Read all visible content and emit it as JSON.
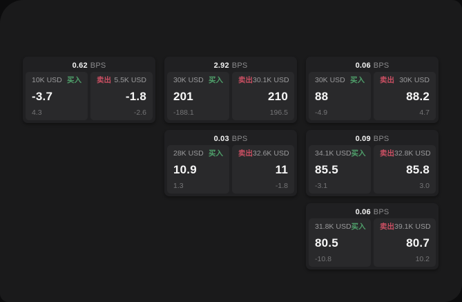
{
  "labels": {
    "bps_unit": "BPS",
    "buy": "买入",
    "sell": "卖出"
  },
  "colors": {
    "buy": "#4f9f6a",
    "sell": "#c94f62",
    "surface": "#1a1a1b",
    "card": "#202022",
    "panel": "#29292b"
  },
  "cards": [
    {
      "bps": "0.62",
      "buy": {
        "amount": "10K USD",
        "price": "-3.7",
        "delta": "4.3"
      },
      "sell": {
        "amount": "5.5K USD",
        "price": "-1.8",
        "delta": "-2.6"
      }
    },
    {
      "bps": "2.92",
      "buy": {
        "amount": "30K USD",
        "price": "201",
        "delta": "-188.1"
      },
      "sell": {
        "amount": "30.1K USD",
        "price": "210",
        "delta": "196.5"
      }
    },
    {
      "bps": "0.06",
      "buy": {
        "amount": "30K USD",
        "price": "88",
        "delta": "-4.9"
      },
      "sell": {
        "amount": "30K USD",
        "price": "88.2",
        "delta": "4.7"
      }
    },
    {
      "bps": "0.03",
      "buy": {
        "amount": "28K USD",
        "price": "10.9",
        "delta": "1.3"
      },
      "sell": {
        "amount": "32.6K USD",
        "price": "11",
        "delta": "-1.8"
      }
    },
    {
      "bps": "0.09",
      "buy": {
        "amount": "34.1K USD",
        "price": "85.5",
        "delta": "-3.1"
      },
      "sell": {
        "amount": "32.8K USD",
        "price": "85.8",
        "delta": "3.0"
      }
    },
    {
      "bps": "0.06",
      "buy": {
        "amount": "31.8K USD",
        "price": "80.5",
        "delta": "-10.8"
      },
      "sell": {
        "amount": "39.1K USD",
        "price": "80.7",
        "delta": "10.2"
      }
    }
  ]
}
